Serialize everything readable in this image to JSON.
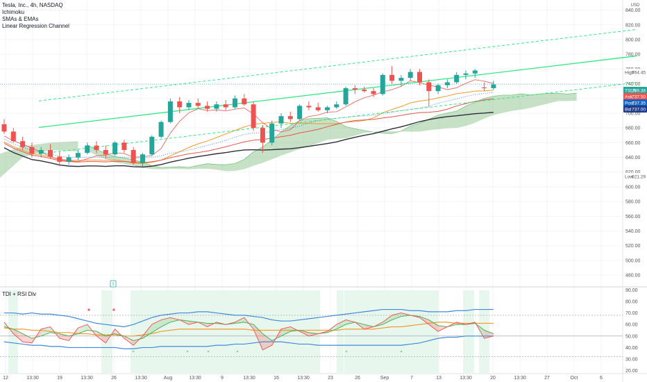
{
  "legend": {
    "symbol_line": "Tesla, Inc., 4h, NASDAQ",
    "indicators": [
      "Ichimoku",
      "SMAs & EMAs",
      "Linear Regression Channel"
    ]
  },
  "sub_legend": "TDI + RSI Div",
  "currency_mark": "USD",
  "badges": {
    "high": {
      "label": "High",
      "value": "764.45"
    },
    "ticker": {
      "label": "TSLA",
      "value": "739.38"
    },
    "ask": {
      "label": "Ask",
      "value": "737.50"
    },
    "post": {
      "label": "Post",
      "value": "737.35"
    },
    "bid": {
      "label": "Bid",
      "value": "737.00"
    },
    "low": {
      "label": "Low",
      "value": "621.29"
    }
  },
  "colors": {
    "up": "#26a69a",
    "down": "#ef5350",
    "reg_line": "#2ee87f",
    "cloud": "#98c997",
    "sma_dark": "#2a2e39",
    "ema_orange": "#f29b25",
    "ema_red": "#e8534a",
    "tdi_blue": "#3e8ad8",
    "tdi_green": "#4caf50",
    "tdi_red": "#f05a5a",
    "tdi_orange": "#f19a30",
    "badge_ticker": "#26a69a",
    "badge_ask": "#ef5350",
    "badge_post": "#1565c0",
    "badge_bid": "#1e3a8a"
  },
  "chart_data": {
    "type": "candlestick",
    "title": "Tesla, Inc., 4h, NASDAQ",
    "price_axis": {
      "ticks": [
        480,
        500,
        520,
        540,
        560,
        580,
        600,
        620,
        640,
        660,
        680,
        700,
        720,
        740,
        760,
        780,
        800,
        820,
        840
      ],
      "ylim": [
        465,
        850
      ]
    },
    "x_axis": {
      "labels": [
        "12",
        "13:30",
        "19",
        "13:30",
        "26",
        "13:30",
        "Aug",
        "13:30",
        "9",
        "13:30",
        "16",
        "13:30",
        "23",
        "26",
        "Sep",
        "7",
        "13",
        "13:30",
        "20",
        "13:30",
        "27",
        "Oct",
        "6"
      ]
    },
    "candles": [
      [
        685,
        692,
        672,
        675
      ],
      [
        675,
        680,
        660,
        662
      ],
      [
        662,
        668,
        650,
        654
      ],
      [
        654,
        660,
        640,
        645
      ],
      [
        645,
        654,
        640,
        650
      ],
      [
        650,
        658,
        638,
        641
      ],
      [
        641,
        648,
        628,
        634
      ],
      [
        634,
        644,
        630,
        640
      ],
      [
        640,
        650,
        636,
        646
      ],
      [
        646,
        660,
        644,
        656
      ],
      [
        656,
        662,
        646,
        650
      ],
      [
        650,
        656,
        638,
        644
      ],
      [
        644,
        662,
        642,
        660
      ],
      [
        660,
        664,
        646,
        650
      ],
      [
        650,
        654,
        630,
        632
      ],
      [
        632,
        646,
        628,
        644
      ],
      [
        644,
        670,
        642,
        668
      ],
      [
        668,
        690,
        666,
        688
      ],
      [
        688,
        720,
        686,
        716
      ],
      [
        716,
        722,
        700,
        708
      ],
      [
        708,
        718,
        704,
        714
      ],
      [
        714,
        720,
        706,
        710
      ],
      [
        710,
        716,
        702,
        706
      ],
      [
        706,
        716,
        702,
        712
      ],
      [
        712,
        718,
        704,
        708
      ],
      [
        708,
        724,
        706,
        720
      ],
      [
        720,
        726,
        710,
        712
      ],
      [
        712,
        716,
        676,
        680
      ],
      [
        680,
        684,
        646,
        660
      ],
      [
        660,
        690,
        656,
        686
      ],
      [
        686,
        700,
        680,
        696
      ],
      [
        696,
        702,
        688,
        692
      ],
      [
        692,
        712,
        690,
        710
      ],
      [
        710,
        716,
        704,
        708
      ],
      [
        708,
        714,
        702,
        704
      ],
      [
        704,
        710,
        700,
        708
      ],
      [
        708,
        716,
        706,
        712
      ],
      [
        712,
        736,
        710,
        734
      ],
      [
        734,
        738,
        726,
        732
      ],
      [
        732,
        736,
        728,
        730
      ],
      [
        730,
        734,
        722,
        726
      ],
      [
        726,
        754,
        724,
        752
      ],
      [
        752,
        764,
        740,
        744
      ],
      [
        744,
        752,
        736,
        748
      ],
      [
        748,
        760,
        744,
        756
      ],
      [
        756,
        760,
        738,
        742
      ],
      [
        742,
        746,
        708,
        730
      ],
      [
        730,
        740,
        726,
        738
      ],
      [
        738,
        746,
        734,
        742
      ],
      [
        742,
        756,
        740,
        752
      ],
      [
        752,
        758,
        746,
        754
      ],
      [
        754,
        760,
        748,
        758
      ],
      [
        735,
        742,
        730,
        734
      ],
      [
        734,
        744,
        732,
        739
      ]
    ],
    "regression": {
      "start": [
        0,
        675
      ],
      "end": [
        70,
        780
      ],
      "channel_offset": 36
    },
    "tdi_axis": {
      "ticks": [
        20,
        30,
        40,
        50,
        60,
        70,
        80,
        90
      ],
      "ylim": [
        18,
        92
      ],
      "levels": [
        32,
        50,
        68
      ]
    },
    "tdi_upper_band": [
      70,
      70,
      69,
      70,
      69,
      69,
      68,
      67,
      65,
      63,
      61,
      60,
      59,
      58,
      60,
      63,
      66,
      68,
      69,
      70,
      70,
      71,
      71,
      70,
      69,
      68,
      68,
      67,
      66,
      64,
      63,
      63,
      64,
      65,
      66,
      67,
      68,
      69,
      70,
      71,
      72,
      73,
      73,
      73,
      72,
      72,
      71,
      71,
      71,
      72,
      72,
      73,
      73,
      73
    ],
    "tdi_lower_band": [
      45,
      44,
      43,
      42,
      42,
      41,
      41,
      40,
      40,
      40,
      40,
      40,
      40,
      39,
      39,
      40,
      40,
      41,
      41,
      41,
      41,
      41,
      41,
      42,
      42,
      43,
      43,
      44,
      45,
      45,
      45,
      44,
      43,
      43,
      42,
      42,
      42,
      42,
      42,
      42,
      42,
      42,
      42,
      42,
      43,
      44,
      46,
      48,
      49,
      49,
      50,
      50,
      50,
      50
    ],
    "tdi_mid_band": [
      57,
      56,
      56,
      55,
      55,
      54,
      53,
      53,
      52,
      52,
      51,
      51,
      51,
      50,
      50,
      51,
      52,
      54,
      55,
      56,
      56,
      56,
      56,
      56,
      56,
      56,
      56,
      55,
      55,
      55,
      55,
      55,
      55,
      55,
      55,
      55,
      55,
      56,
      56,
      56,
      56,
      57,
      58,
      58,
      59,
      60,
      61,
      62,
      62,
      61,
      61,
      61,
      61,
      61
    ],
    "tdi_rsi": [
      62,
      52,
      45,
      44,
      56,
      58,
      48,
      46,
      57,
      60,
      50,
      44,
      56,
      48,
      42,
      50,
      60,
      64,
      66,
      64,
      60,
      62,
      58,
      62,
      60,
      62,
      66,
      56,
      38,
      42,
      56,
      58,
      54,
      50,
      52,
      54,
      60,
      64,
      62,
      56,
      58,
      62,
      68,
      70,
      68,
      66,
      60,
      54,
      58,
      62,
      60,
      62,
      48,
      50
    ],
    "tdi_signal": [
      58,
      56,
      52,
      48,
      50,
      53,
      52,
      50,
      52,
      55,
      54,
      50,
      52,
      50,
      46,
      48,
      53,
      58,
      62,
      64,
      63,
      62,
      61,
      61,
      60,
      61,
      62,
      60,
      52,
      46,
      50,
      54,
      55,
      53,
      52,
      53,
      56,
      60,
      62,
      60,
      58,
      60,
      64,
      67,
      68,
      67,
      64,
      59,
      58,
      60,
      60,
      61,
      55,
      52
    ]
  }
}
